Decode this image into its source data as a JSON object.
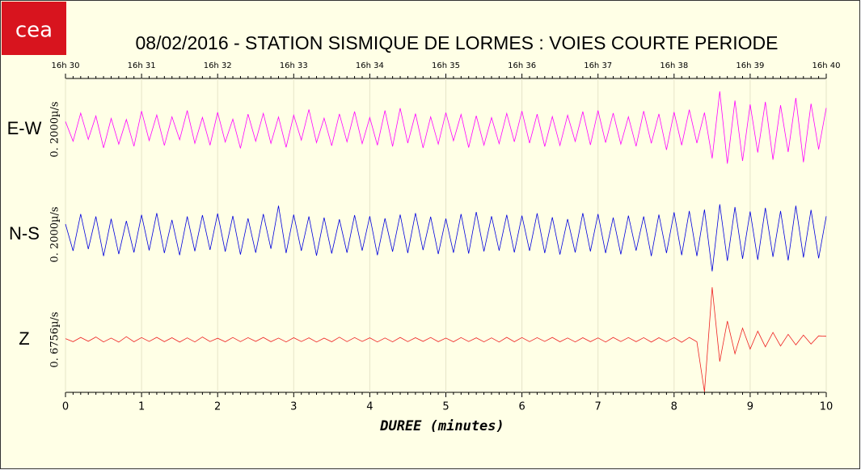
{
  "logo": "cea",
  "chart_data": {
    "type": "seismogram",
    "title": "08/02/2016  -  STATION SISMIQUE DE LORMES : VOIES COURTE PERIODE",
    "xlabel": "DUREE (minutes)",
    "xlim": [
      0,
      10
    ],
    "xticks": [
      0,
      1,
      2,
      3,
      4,
      5,
      6,
      7,
      8,
      9,
      10
    ],
    "top_xticks": [
      {
        "value": 0,
        "label": "16h 30"
      },
      {
        "value": 1,
        "label": "16h 31"
      },
      {
        "value": 2,
        "label": "16h 32"
      },
      {
        "value": 3,
        "label": "16h 33"
      },
      {
        "value": 4,
        "label": "16h 34"
      },
      {
        "value": 5,
        "label": "16h 35"
      },
      {
        "value": 6,
        "label": "16h 36"
      },
      {
        "value": 7,
        "label": "16h 37"
      },
      {
        "value": 8,
        "label": "16h 38"
      },
      {
        "value": 9,
        "label": "16h 39"
      },
      {
        "value": 10,
        "label": "16h 40"
      }
    ],
    "grid": true,
    "x": [
      0,
      0.1,
      0.2,
      0.3,
      0.4,
      0.5,
      0.6,
      0.7,
      0.8,
      0.9,
      1,
      1.1,
      1.2,
      1.3,
      1.4,
      1.5,
      1.6,
      1.7,
      1.8,
      1.9,
      2,
      2.1,
      2.2,
      2.3,
      2.4,
      2.5,
      2.6,
      2.7,
      2.8,
      2.9,
      3,
      3.1,
      3.2,
      3.3,
      3.4,
      3.5,
      3.6,
      3.7,
      3.8,
      3.9,
      4,
      4.1,
      4.2,
      4.3,
      4.4,
      4.5,
      4.6,
      4.7,
      4.8,
      4.9,
      5,
      5.1,
      5.2,
      5.3,
      5.4,
      5.5,
      5.6,
      5.7,
      5.8,
      5.9,
      6,
      6.1,
      6.2,
      6.3,
      6.4,
      6.5,
      6.6,
      6.7,
      6.8,
      6.9,
      7,
      7.1,
      7.2,
      7.3,
      7.4,
      7.5,
      7.6,
      7.7,
      7.8,
      7.9,
      8,
      8.1,
      8.2,
      8.3,
      8.4,
      8.5,
      8.6,
      8.7,
      8.8,
      8.9,
      9,
      9.1,
      9.2,
      9.3,
      9.4,
      9.5,
      9.6,
      9.7,
      9.8,
      9.9,
      10
    ],
    "channels": [
      {
        "name": "E-W",
        "scale_label": "0. 2000µ/s",
        "color": "#ff00ff",
        "ylim": [
          -2000,
          2000
        ],
        "values": [
          300,
          -450,
          620,
          -380,
          510,
          -700,
          420,
          -560,
          380,
          -640,
          700,
          -420,
          550,
          -610,
          480,
          -390,
          720,
          -530,
          460,
          -600,
          650,
          -480,
          390,
          -720,
          580,
          -450,
          610,
          -530,
          470,
          -680,
          540,
          -410,
          760,
          -500,
          430,
          -620,
          590,
          -470,
          680,
          -540,
          450,
          -600,
          720,
          -650,
          810,
          -520,
          600,
          -700,
          480,
          -560,
          640,
          -430,
          570,
          -690,
          520,
          -600,
          450,
          -540,
          610,
          -470,
          700,
          -520,
          580,
          -650,
          490,
          -610,
          540,
          -460,
          680,
          -590,
          720,
          -500,
          620,
          -560,
          480,
          -640,
          700,
          -530,
          590,
          -780,
          660,
          -600,
          750,
          -520,
          640,
          -1100,
          1450,
          -1300,
          1100,
          -1200,
          950,
          -880,
          1050,
          -1150,
          920,
          -860,
          1200,
          -1250,
          980,
          -760,
          820
        ]
      },
      {
        "name": "N-S",
        "scale_label": "0. 2000µ/s",
        "color": "#0000dd",
        "ylim": [
          -2000,
          2000
        ],
        "values": [
          400,
          -620,
          780,
          -550,
          690,
          -820,
          600,
          -740,
          520,
          -680,
          750,
          -600,
          820,
          -700,
          560,
          -780,
          690,
          -630,
          740,
          -580,
          800,
          -650,
          710,
          -760,
          620,
          -690,
          780,
          -540,
          1100,
          -700,
          760,
          -620,
          690,
          -800,
          650,
          -720,
          580,
          -690,
          740,
          -610,
          700,
          -780,
          620,
          -650,
          760,
          -700,
          820,
          -590,
          680,
          -740,
          610,
          -690,
          780,
          -720,
          860,
          -640,
          700,
          -610,
          750,
          -680,
          720,
          -620,
          810,
          -700,
          660,
          -760,
          590,
          -680,
          820,
          -640,
          780,
          -700,
          650,
          -750,
          720,
          -610,
          690,
          -820,
          760,
          -700,
          850,
          -780,
          900,
          -820,
          950,
          -1400,
          1150,
          -1000,
          1050,
          -920,
          880,
          -960,
          1020,
          -850,
          900,
          -980,
          1100,
          -870,
          940,
          -900,
          700
        ]
      },
      {
        "name": "Z",
        "scale_label": "0. 6756µ/s",
        "color": "#ee2222",
        "ylim": [
          -6756,
          6756
        ],
        "values": [
          150,
          -250,
          300,
          -200,
          350,
          -280,
          220,
          -300,
          400,
          -260,
          280,
          -220,
          310,
          -250,
          260,
          -300,
          240,
          -280,
          350,
          -230,
          200,
          -260,
          290,
          -240,
          270,
          -210,
          300,
          -250,
          220,
          -280,
          260,
          -230,
          250,
          -290,
          210,
          -260,
          330,
          -240,
          280,
          -220,
          250,
          -280,
          230,
          -270,
          300,
          -240,
          260,
          -210,
          290,
          -250,
          220,
          -260,
          280,
          -230,
          250,
          -270,
          240,
          -290,
          310,
          -260,
          280,
          -240,
          270,
          -220,
          300,
          -260,
          230,
          -280,
          260,
          -250,
          240,
          -290,
          300,
          -230,
          280,
          -250,
          270,
          -300,
          260,
          -240,
          280,
          -320,
          300,
          -260,
          -6700,
          6750,
          -2800,
          2400,
          -1800,
          1500,
          -1200,
          1100,
          -900,
          950,
          -800,
          700,
          -650,
          600,
          -550,
          500,
          450
        ]
      }
    ]
  }
}
